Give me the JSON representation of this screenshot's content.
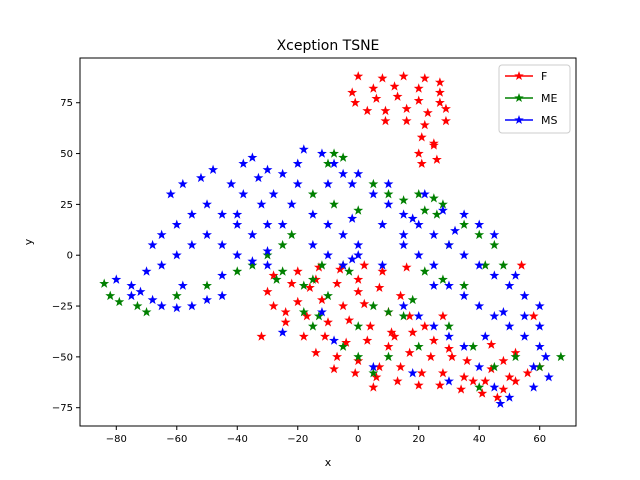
{
  "chart_data": {
    "type": "scatter",
    "title": "Xception TSNE",
    "xlabel": "x",
    "ylabel": "y",
    "xlim": [
      -92,
      72
    ],
    "ylim": [
      -84,
      97
    ],
    "xticks": [
      -80,
      -60,
      -40,
      -20,
      0,
      20,
      40,
      60
    ],
    "yticks": [
      -75,
      -50,
      -25,
      0,
      25,
      50,
      75
    ],
    "grid": false,
    "legend_position": "top-right",
    "marker": "star",
    "series": [
      {
        "name": "F",
        "color": "#ff0000",
        "points": [
          [
            0,
            88
          ],
          [
            8,
            87
          ],
          [
            15,
            88
          ],
          [
            22,
            87
          ],
          [
            27,
            85
          ],
          [
            -2,
            80
          ],
          [
            5,
            82
          ],
          [
            12,
            83
          ],
          [
            20,
            82
          ],
          [
            27,
            80
          ],
          [
            -1,
            75
          ],
          [
            6,
            77
          ],
          [
            13,
            78
          ],
          [
            20,
            76
          ],
          [
            27,
            75
          ],
          [
            3,
            71
          ],
          [
            9,
            71
          ],
          [
            16,
            72
          ],
          [
            23,
            70
          ],
          [
            29,
            72
          ],
          [
            9,
            66
          ],
          [
            16,
            66
          ],
          [
            22,
            64
          ],
          [
            29,
            66
          ],
          [
            21,
            58
          ],
          [
            25,
            54
          ],
          [
            20,
            50
          ],
          [
            26,
            47
          ],
          [
            21,
            45
          ],
          [
            25,
            55
          ],
          [
            -28,
            -10
          ],
          [
            -20,
            -8
          ],
          [
            -13,
            -6
          ],
          [
            -6,
            -7
          ],
          [
            2,
            -5
          ],
          [
            -30,
            -18
          ],
          [
            -22,
            -14
          ],
          [
            -14,
            -12
          ],
          [
            -7,
            -14
          ],
          [
            0,
            -12
          ],
          [
            7,
            -16
          ],
          [
            14,
            -20
          ],
          [
            -28,
            -25
          ],
          [
            -20,
            -23
          ],
          [
            -12,
            -22
          ],
          [
            -5,
            -25
          ],
          [
            2,
            -24
          ],
          [
            10,
            -28
          ],
          [
            17,
            -30
          ],
          [
            -24,
            -33
          ],
          [
            -17,
            -30
          ],
          [
            -10,
            -33
          ],
          [
            -3,
            -32
          ],
          [
            4,
            -35
          ],
          [
            11,
            -38
          ],
          [
            18,
            -38
          ],
          [
            25,
            -42
          ],
          [
            -18,
            -40
          ],
          [
            -11,
            -40
          ],
          [
            -4,
            -43
          ],
          [
            3,
            -42
          ],
          [
            10,
            -45
          ],
          [
            17,
            -48
          ],
          [
            24,
            -50
          ],
          [
            31,
            -50
          ],
          [
            -14,
            -48
          ],
          [
            -7,
            -50
          ],
          [
            0,
            -52
          ],
          [
            7,
            -55
          ],
          [
            14,
            -55
          ],
          [
            21,
            -58
          ],
          [
            28,
            -58
          ],
          [
            35,
            -60
          ],
          [
            42,
            -62
          ],
          [
            -8,
            -56
          ],
          [
            -1,
            -58
          ],
          [
            6,
            -60
          ],
          [
            13,
            -62
          ],
          [
            20,
            -64
          ],
          [
            27,
            -64
          ],
          [
            34,
            -66
          ],
          [
            41,
            -68
          ],
          [
            48,
            -66
          ],
          [
            52,
            -62
          ],
          [
            56,
            -58
          ],
          [
            60,
            -55
          ],
          [
            30,
            -46
          ],
          [
            36,
            -52
          ],
          [
            44,
            -56
          ],
          [
            50,
            -60
          ],
          [
            38,
            -62
          ],
          [
            46,
            -70
          ],
          [
            22,
            -35
          ],
          [
            8,
            -8
          ],
          [
            0,
            -18
          ],
          [
            -16,
            -16
          ],
          [
            12,
            -40
          ],
          [
            -24,
            -28
          ],
          [
            -32,
            -40
          ],
          [
            54,
            -5
          ],
          [
            58,
            -30
          ],
          [
            52,
            -48
          ],
          [
            44,
            -44
          ],
          [
            28,
            -30
          ],
          [
            16,
            -6
          ],
          [
            5,
            -65
          ],
          [
            48,
            -52
          ]
        ]
      },
      {
        "name": "ME",
        "color": "#008000",
        "points": [
          [
            -84,
            -14
          ],
          [
            -82,
            -20
          ],
          [
            -79,
            -23
          ],
          [
            -73,
            -25
          ],
          [
            -70,
            -28
          ],
          [
            -60,
            -20
          ],
          [
            -50,
            -15
          ],
          [
            -40,
            -8
          ],
          [
            -35,
            -5
          ],
          [
            -30,
            0
          ],
          [
            -25,
            5
          ],
          [
            -22,
            10
          ],
          [
            -15,
            -12
          ],
          [
            -10,
            -20
          ],
          [
            -18,
            -15
          ],
          [
            -5,
            -5
          ],
          [
            -3,
            -8
          ],
          [
            -13,
            -30
          ],
          [
            -15,
            -35
          ],
          [
            -18,
            -28
          ],
          [
            -27,
            -12
          ],
          [
            -25,
            -8
          ],
          [
            -8,
            50
          ],
          [
            -5,
            48
          ],
          [
            -10,
            45
          ],
          [
            -15,
            30
          ],
          [
            -8,
            25
          ],
          [
            0,
            22
          ],
          [
            5,
            35
          ],
          [
            10,
            30
          ],
          [
            15,
            27
          ],
          [
            20,
            30
          ],
          [
            25,
            28
          ],
          [
            28,
            25
          ],
          [
            26,
            20
          ],
          [
            22,
            22
          ],
          [
            35,
            15
          ],
          [
            40,
            10
          ],
          [
            45,
            5
          ],
          [
            48,
            -5
          ],
          [
            42,
            -5
          ],
          [
            35,
            -15
          ],
          [
            28,
            -12
          ],
          [
            22,
            -8
          ],
          [
            18,
            -22
          ],
          [
            15,
            -30
          ],
          [
            10,
            -28
          ],
          [
            5,
            -25
          ],
          [
            0,
            -35
          ],
          [
            -5,
            -45
          ],
          [
            0,
            -50
          ],
          [
            5,
            -58
          ],
          [
            10,
            -50
          ],
          [
            20,
            -45
          ],
          [
            30,
            -35
          ],
          [
            38,
            -45
          ],
          [
            45,
            -55
          ],
          [
            52,
            -50
          ],
          [
            60,
            -55
          ],
          [
            67,
            -50
          ],
          [
            40,
            -65
          ],
          [
            -12,
            -5
          ],
          [
            30,
            5
          ]
        ]
      },
      {
        "name": "MS",
        "color": "#0000ff",
        "points": [
          [
            -80,
            -12
          ],
          [
            -75,
            -15
          ],
          [
            -70,
            -8
          ],
          [
            -72,
            -18
          ],
          [
            -68,
            -22
          ],
          [
            -65,
            -25
          ],
          [
            -60,
            -26
          ],
          [
            -55,
            -25
          ],
          [
            -50,
            -22
          ],
          [
            -45,
            -20
          ],
          [
            -65,
            -5
          ],
          [
            -60,
            0
          ],
          [
            -55,
            5
          ],
          [
            -50,
            10
          ],
          [
            -45,
            5
          ],
          [
            -40,
            0
          ],
          [
            -35,
            -3
          ],
          [
            -30,
            2
          ],
          [
            -65,
            10
          ],
          [
            -60,
            15
          ],
          [
            -55,
            20
          ],
          [
            -50,
            25
          ],
          [
            -45,
            20
          ],
          [
            -40,
            15
          ],
          [
            -35,
            10
          ],
          [
            -30,
            15
          ],
          [
            -62,
            30
          ],
          [
            -58,
            35
          ],
          [
            -52,
            38
          ],
          [
            -48,
            42
          ],
          [
            -42,
            35
          ],
          [
            -38,
            30
          ],
          [
            -32,
            25
          ],
          [
            -28,
            30
          ],
          [
            -22,
            25
          ],
          [
            -15,
            20
          ],
          [
            -10,
            15
          ],
          [
            -5,
            10
          ],
          [
            0,
            5
          ],
          [
            -38,
            45
          ],
          [
            -35,
            48
          ],
          [
            -30,
            42
          ],
          [
            -25,
            40
          ],
          [
            -20,
            45
          ],
          [
            -18,
            52
          ],
          [
            -12,
            50
          ],
          [
            -8,
            45
          ],
          [
            -5,
            40
          ],
          [
            -2,
            35
          ],
          [
            5,
            30
          ],
          [
            10,
            25
          ],
          [
            15,
            20
          ],
          [
            20,
            15
          ],
          [
            25,
            10
          ],
          [
            30,
            5
          ],
          [
            35,
            0
          ],
          [
            40,
            -5
          ],
          [
            45,
            -10
          ],
          [
            50,
            -15
          ],
          [
            55,
            -20
          ],
          [
            60,
            -25
          ],
          [
            -40,
            20
          ],
          [
            -25,
            15
          ],
          [
            -15,
            5
          ],
          [
            -10,
            0
          ],
          [
            -5,
            -5
          ],
          [
            -20,
            35
          ],
          [
            -10,
            35
          ],
          [
            0,
            40
          ],
          [
            10,
            35
          ],
          [
            15,
            5
          ],
          [
            20,
            0
          ],
          [
            25,
            -5
          ],
          [
            30,
            -15
          ],
          [
            35,
            -20
          ],
          [
            40,
            -25
          ],
          [
            45,
            -30
          ],
          [
            50,
            -35
          ],
          [
            55,
            -40
          ],
          [
            60,
            -45
          ],
          [
            62,
            -50
          ],
          [
            63,
            -60
          ],
          [
            58,
            -65
          ],
          [
            50,
            -70
          ],
          [
            45,
            -65
          ],
          [
            40,
            -55
          ],
          [
            35,
            -45
          ],
          [
            30,
            -40
          ],
          [
            25,
            -35
          ],
          [
            20,
            -30
          ],
          [
            15,
            -25
          ],
          [
            48,
            -28
          ],
          [
            55,
            -30
          ],
          [
            52,
            -10
          ],
          [
            45,
            10
          ],
          [
            40,
            15
          ],
          [
            35,
            20
          ],
          [
            28,
            22
          ],
          [
            18,
            18
          ],
          [
            8,
            15
          ],
          [
            -2,
            18
          ],
          [
            -25,
            -38
          ],
          [
            -12,
            -28
          ],
          [
            -8,
            -42
          ],
          [
            5,
            -55
          ],
          [
            18,
            -58
          ],
          [
            30,
            -62
          ],
          [
            47,
            -73
          ],
          [
            -30,
            -5
          ],
          [
            -45,
            -10
          ],
          [
            -75,
            -20
          ],
          [
            8,
            -5
          ],
          [
            0,
            0
          ],
          [
            -33,
            38
          ],
          [
            -58,
            -15
          ],
          [
            -68,
            5
          ],
          [
            22,
            30
          ],
          [
            32,
            12
          ],
          [
            42,
            -40
          ],
          [
            58,
            -55
          ],
          [
            60,
            -35
          ],
          [
            25,
            -15
          ],
          [
            15,
            10
          ],
          [
            -2,
            -2
          ]
        ]
      }
    ]
  }
}
